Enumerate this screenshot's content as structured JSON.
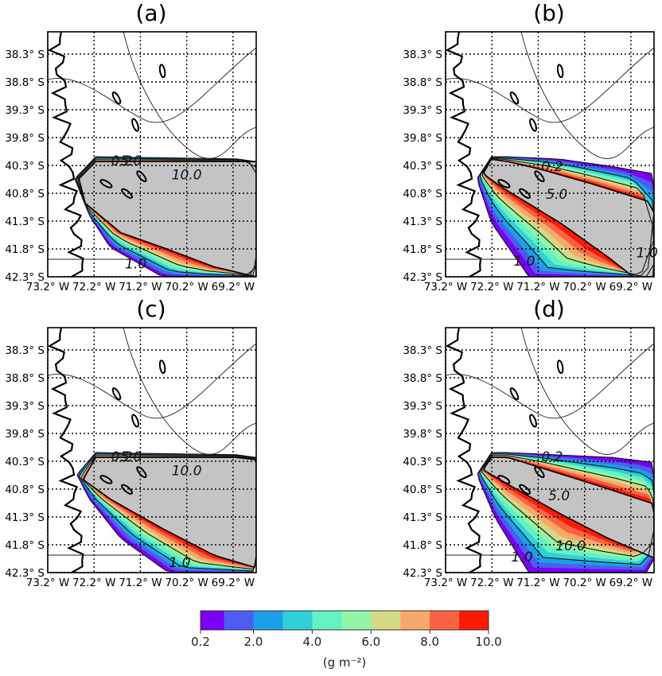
{
  "chart_data": [
    {
      "type": "heatmap",
      "title": "(a)",
      "xlabel": "",
      "ylabel": "",
      "xlim": [
        -73.2,
        -68.7
      ],
      "ylim": [
        -42.3,
        -37.9
      ],
      "grid": "dotted",
      "x_ticks": [
        "73.2° W",
        "72.2° W",
        "71.2° W",
        "70.2° W",
        "69.2° W"
      ],
      "y_ticks": [
        "38.3° S",
        "38.8° S",
        "39.3° S",
        "39.8° S",
        "40.3° S",
        "40.8° S",
        "41.3° S",
        "41.8° S",
        "42.3° S"
      ],
      "contour_labels": [
        {
          "text": "0.2",
          "lon": -71.6,
          "lat": -40.3
        },
        {
          "text": "5.0",
          "lon": -71.4,
          "lat": -40.3
        },
        {
          "text": "10.0",
          "lon": -70.2,
          "lat": -40.55
        },
        {
          "text": "1.0",
          "lon": -71.3,
          "lat": -42.15
        }
      ]
    },
    {
      "type": "heatmap",
      "title": "(b)",
      "xlabel": "",
      "ylabel": "",
      "xlim": [
        -73.2,
        -68.7
      ],
      "ylim": [
        -42.3,
        -37.9
      ],
      "grid": "dotted",
      "x_ticks": [
        "73.2° W",
        "72.2° W",
        "71.2° W",
        "70.2° W",
        "69.2° W"
      ],
      "y_ticks": [
        "38.3° S",
        "38.8° S",
        "39.3° S",
        "39.8° S",
        "40.3° S",
        "40.8° S",
        "41.3° S",
        "41.8° S",
        "42.3° S"
      ],
      "contour_labels": [
        {
          "text": "0.2",
          "lon": -70.9,
          "lat": -40.4
        },
        {
          "text": "5.0",
          "lon": -70.8,
          "lat": -40.9
        },
        {
          "text": "1.0",
          "lon": -71.5,
          "lat": -42.1
        },
        {
          "text": "1.0",
          "lon": -68.85,
          "lat": -41.95
        }
      ]
    },
    {
      "type": "heatmap",
      "title": "(c)",
      "xlabel": "",
      "ylabel": "",
      "xlim": [
        -73.2,
        -68.7
      ],
      "ylim": [
        -42.3,
        -37.9
      ],
      "grid": "dotted",
      "x_ticks": [
        "73.2° W",
        "72.2° W",
        "71.2° W",
        "70.2° W",
        "69.2° W"
      ],
      "y_ticks": [
        "38.3° S",
        "38.8° S",
        "39.3° S",
        "39.8° S",
        "40.3° S",
        "40.8° S",
        "41.3° S",
        "41.8° S",
        "42.3° S"
      ],
      "contour_labels": [
        {
          "text": "0.2",
          "lon": -71.6,
          "lat": -40.3
        },
        {
          "text": "5.0",
          "lon": -71.4,
          "lat": -40.3
        },
        {
          "text": "10.0",
          "lon": -70.2,
          "lat": -40.55
        },
        {
          "text": "1.0",
          "lon": -70.35,
          "lat": -42.2
        }
      ]
    },
    {
      "type": "heatmap",
      "title": "(d)",
      "xlabel": "",
      "ylabel": "",
      "xlim": [
        -73.2,
        -68.7
      ],
      "ylim": [
        -42.3,
        -37.9
      ],
      "grid": "dotted",
      "x_ticks": [
        "73.2° W",
        "72.2° W",
        "71.2° W",
        "70.2° W",
        "69.2° W"
      ],
      "y_ticks": [
        "38.3° S",
        "38.8° S",
        "39.3° S",
        "39.8° S",
        "40.3° S",
        "40.8° S",
        "41.3° S",
        "41.8° S",
        "42.3° S"
      ],
      "contour_labels": [
        {
          "text": "0.2",
          "lon": -70.9,
          "lat": -40.3
        },
        {
          "text": "5.0",
          "lon": -70.75,
          "lat": -41.0
        },
        {
          "text": "10.0",
          "lon": -70.5,
          "lat": -41.9
        },
        {
          "text": "1.0",
          "lon": -71.55,
          "lat": -42.1
        }
      ]
    }
  ],
  "colorbar": {
    "levels": [
      0.2,
      1.0,
      2.0,
      3.0,
      4.0,
      5.0,
      6.0,
      7.0,
      8.0,
      9.0,
      10.0
    ],
    "colors": [
      "#7b00f5",
      "#4c5cf3",
      "#1aa0e6",
      "#2fd0d6",
      "#62f2c4",
      "#93f6a6",
      "#d4d985",
      "#f8a96a",
      "#f86443",
      "#ff1a05"
    ],
    "tick_labels": [
      "0.2",
      "2.0",
      "4.0",
      "6.0",
      "8.0",
      "10.0"
    ],
    "label": "(g m⁻²)"
  },
  "colors": {
    "grey_fill": "#c4c4c4",
    "contour": "#111111",
    "coast": "#000000"
  }
}
